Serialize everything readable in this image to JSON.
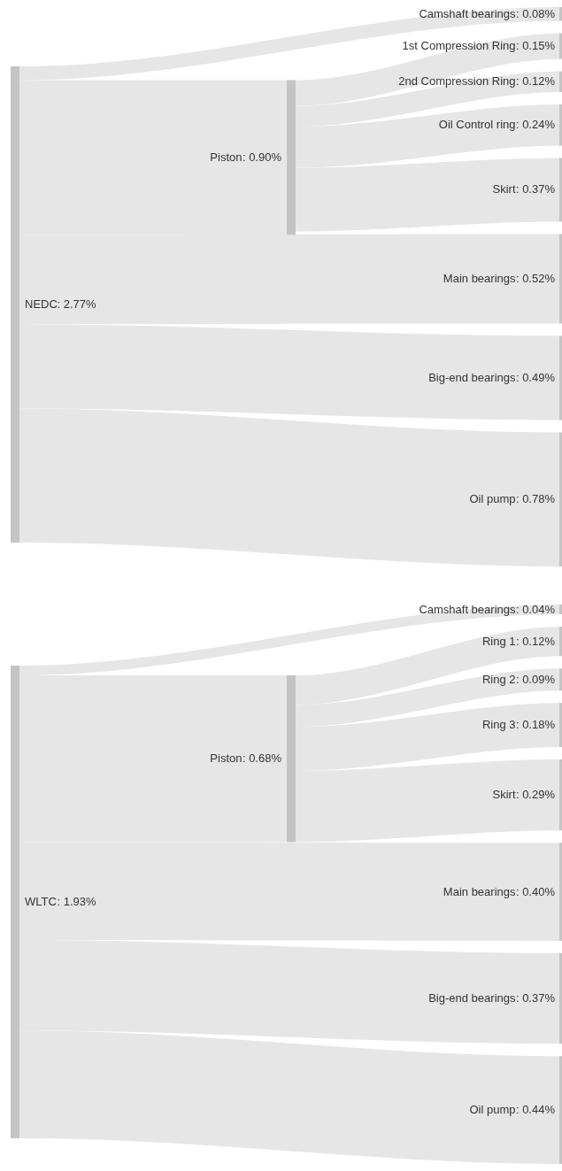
{
  "chart_data": [
    {
      "type": "other",
      "categories": [
        "NEDC",
        "Camshaft bearings",
        "Piston",
        "Main bearings",
        "Big-end bearings",
        "Oil pump",
        "1st Compression Ring",
        "2nd Compression Ring",
        "Oil Control ring",
        "Skirt"
      ],
      "values": [
        2.77,
        0.08,
        0.9,
        0.52,
        0.49,
        0.78,
        0.15,
        0.12,
        0.24,
        0.37
      ],
      "value_labels": [
        ": 2.77%",
        ": 0.08%",
        ": 0.90%",
        ": 0.52%",
        ": 0.49%",
        ": 0.78%",
        ": 0.15%",
        ": 0.12%",
        ": 0.24%",
        ": 0.37%"
      ],
      "data_labels": true
    },
    {
      "type": "other",
      "categories": [
        "WLTC",
        "Camshaft bearings",
        "Piston",
        "Main bearings",
        "Big-end bearings",
        "Oil pump",
        "Ring 1",
        "Ring 2",
        "Ring 3",
        "Skirt"
      ],
      "values": [
        1.93,
        0.04,
        0.68,
        0.4,
        0.37,
        0.44,
        0.12,
        0.09,
        0.18,
        0.29
      ],
      "value_labels": [
        ": 1.93%",
        ": 0.04%",
        ": 0.68%",
        ": 0.40%",
        ": 0.37%",
        ": 0.44%",
        ": 0.12%",
        ": 0.09%",
        ": 0.18%",
        ": 0.29%"
      ],
      "data_labels": true
    }
  ]
}
